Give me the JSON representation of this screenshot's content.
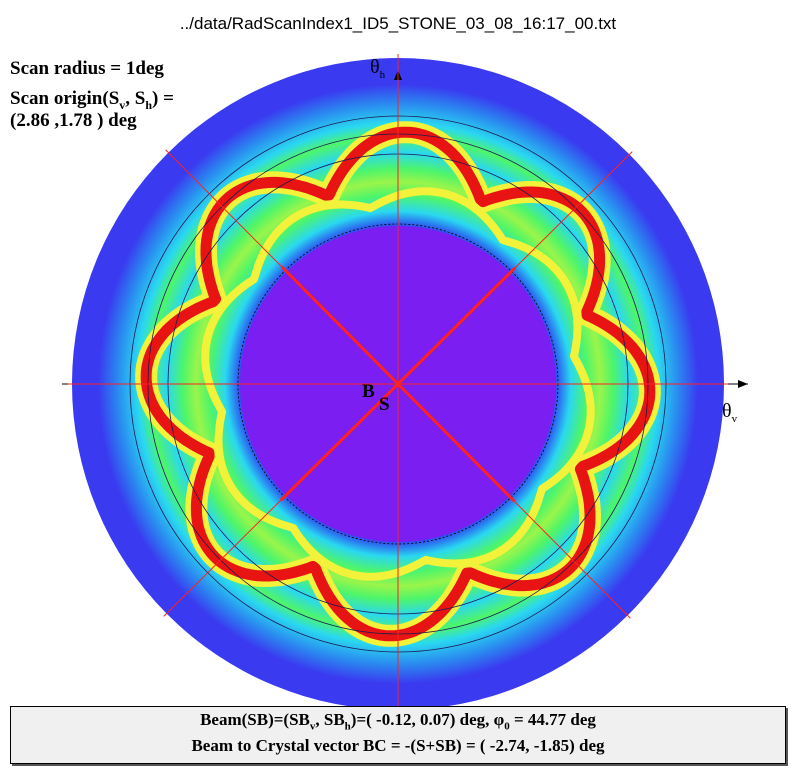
{
  "title": "../data/RadScanIndex1_ID5_STONE_03_08_16:17_00.txt",
  "info": {
    "line1": "Scan  radius =  1deg",
    "line2_prefix": "Scan origin(S",
    "line2_sub1": "v",
    "line2_mid": ", S",
    "line2_sub2": "h",
    "line2_suffix": ") =",
    "line3": "(2.86  ,1.78  ) deg"
  },
  "axes": {
    "x_label": "θ",
    "x_sub": "v",
    "y_label": "θ",
    "y_sub": "h"
  },
  "points": {
    "b_label": "B",
    "s_label": "S"
  },
  "footer": {
    "l1_a": "Beam(SB)=(SB",
    "l1_sub1": "v",
    "l1_b": ", SB",
    "l1_sub2": "h",
    "l1_c": ")=( -0.12,  0.07) deg,    φ",
    "l1_sub3": "0",
    "l1_d": " = 44.77 deg",
    "line2": "Beam to Crystal vector BC = -(S+SB) = ( -2.74, -1.85) deg"
  },
  "chart_data": {
    "type": "heatmap",
    "title": "../data/RadScanIndex1_ID5_STONE_03_08_16:17_00.txt",
    "scan_radius_deg": 1,
    "scan_origin_deg": [
      2.86,
      1.78
    ],
    "beam_sb_deg": [
      -0.12,
      0.07
    ],
    "phi0_deg": 44.77,
    "beam_to_crystal_bc_deg": [
      -2.74,
      -1.85
    ],
    "red_line_angles_deg": [
      0,
      44.77,
      90,
      134.77
    ],
    "colors": {
      "background": "#7a1ef2",
      "low": "#3a3af0",
      "cyan": "#2ad8f0",
      "green": "#4ef56a",
      "yellow": "#f2f23a",
      "red": "#e81414",
      "lines": "#ff2020"
    }
  }
}
